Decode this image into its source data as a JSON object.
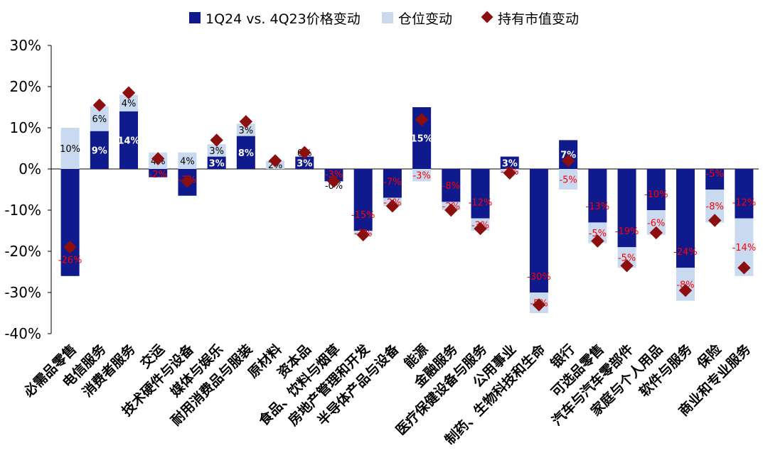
{
  "chart_data": {
    "type": "bar",
    "title": "",
    "xlabel": "",
    "ylabel": "",
    "ylim": [
      -40,
      30
    ],
    "yticks": [
      "30%",
      "20%",
      "10%",
      "0%",
      "-10%",
      "-20%",
      "-30%",
      "-40%"
    ],
    "ytick_values": [
      30,
      20,
      10,
      0,
      -10,
      -20,
      -30,
      -40
    ],
    "legend": [
      "1Q24 vs. 4Q23价格变动",
      "仓位变动",
      "持有市值变动"
    ],
    "legend_position": "top",
    "colors": {
      "price": "#0f1a8c",
      "position": "#c9d9ef",
      "value": "#8b0f0f",
      "neg_label": "#ff0000",
      "pos_label": "#ffffff"
    },
    "categories": [
      "必需品零售",
      "电信服务",
      "消费者服务",
      "交运",
      "技术硬件与设备",
      "媒体与娱乐",
      "耐用消费品与服装",
      "原材料",
      "资本品",
      "食品、饮料与烟草",
      "房地产管理和开发",
      "半导体产品与设备",
      "能源",
      "金融服务",
      "医疗保健设备与服务",
      "公用事业",
      "制药、生物科技和生命",
      "银行",
      "可选品零售",
      "汽车与汽车零部件",
      "家庭与个人用品",
      "软件与服务",
      "保险",
      "商业和专业服务"
    ],
    "series": [
      {
        "name": "1Q24 vs. 4Q23价格变动",
        "values": [
          -26,
          9.2,
          14,
          -2,
          -6.5,
          3,
          8,
          0,
          3,
          -3,
          -15,
          -7,
          15,
          -8,
          -12,
          3,
          -30,
          7,
          -13,
          -19,
          -10,
          -24,
          -5,
          -12
        ],
        "labels": [
          "-26%",
          "9%",
          "14%",
          "-2%",
          "-7%",
          "3%",
          "8%",
          "",
          "3%",
          "-3%",
          "-15%",
          "-7%",
          "15%",
          "-8%",
          "-12%",
          "3%",
          "-30%",
          "7%",
          "-13%",
          "-19%",
          "-10%",
          "-24%",
          "-5%",
          "-12%"
        ]
      },
      {
        "name": "仓位变动",
        "values": [
          10,
          6,
          4,
          4,
          4,
          3,
          3,
          2,
          0,
          0,
          -1,
          -2,
          -3,
          -2,
          -3,
          -1,
          -5,
          -5,
          -5,
          -5,
          -6,
          -8,
          -8,
          -14
        ],
        "labels": [
          "10%",
          "6%",
          "4%",
          "4%",
          "4%",
          "3%",
          "3%",
          "2%",
          "0%",
          "-0%",
          "-1%",
          "-2%",
          "-3%",
          "-2%",
          "-3%",
          "-1%",
          "-5%",
          "-5%",
          "-5%",
          "-5%",
          "-6%",
          "-8%",
          "-8%",
          "-14%"
        ]
      },
      {
        "name": "持有市值变动",
        "values": [
          -19,
          15.5,
          18.5,
          2.5,
          -3,
          7,
          11.5,
          2,
          4,
          -3,
          -16,
          -9,
          12,
          -10,
          -14.5,
          -1,
          -33,
          2,
          -17.5,
          -23.5,
          -15.5,
          -29.5,
          -12.5,
          -24
        ]
      }
    ]
  }
}
